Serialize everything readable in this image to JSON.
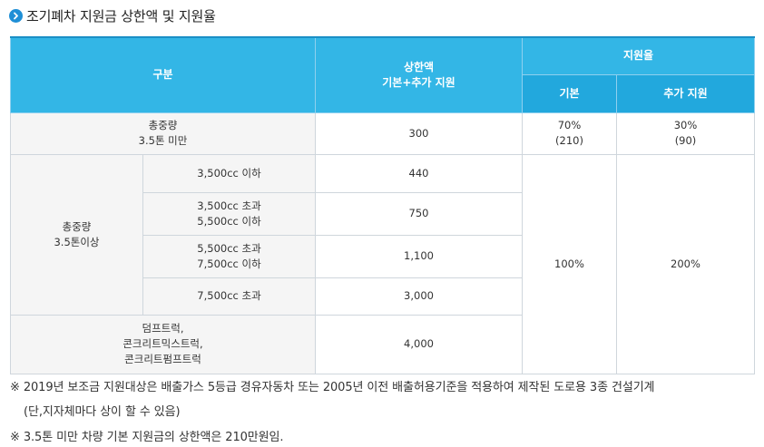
{
  "title": "조기폐차 지원금 상한액 및 지원율",
  "header": {
    "category": "구분",
    "cap_line1": "상한액",
    "cap_line2": "기본+추가 지원",
    "rate": "지원율",
    "basic": "기본",
    "extra": "추가 지원"
  },
  "rows": {
    "under35": {
      "label_line1": "총중량",
      "label_line2": "3.5톤 미만",
      "cap": "300",
      "basic_line1": "70%",
      "basic_line2": "(210)",
      "extra_line1": "30%",
      "extra_line2": "(90)"
    },
    "over35": {
      "label_line1": "총중량",
      "label_line2": "3.5톤이상",
      "basic": "100%",
      "extra": "200%",
      "sub": [
        {
          "l1": "3,500cc 이하",
          "l2": "",
          "cap": "440"
        },
        {
          "l1": "3,500cc 초과",
          "l2": "5,500cc 이하",
          "cap": "750"
        },
        {
          "l1": "5,500cc 초과",
          "l2": "7,500cc 이하",
          "cap": "1,100"
        },
        {
          "l1": "7,500cc 초과",
          "l2": "",
          "cap": "3,000"
        }
      ]
    },
    "machinery": {
      "line1": "덤프트럭,",
      "line2": "콘크리트믹스트럭,",
      "line3": "콘크리트펌프트럭",
      "cap": "4,000"
    }
  },
  "notes": [
    "※ 2019년 보조금 지원대상은 배출가스 5등급 경유자동차 또는 2005년 이전 배출허용기준을 적용하여 제작된 도로용 3종 건설기계",
    "(단,지자체마다 상이 할 수 있음)",
    "※ 3.5톤 미만 차량 기본 지원금의 상한액은 210만원임."
  ],
  "colors": {
    "header_primary": "#33b6e6",
    "header_secondary": "#22a8dd",
    "icon": "#1f8fd6"
  },
  "icons": {
    "title_bullet": "chevron-right-circle-icon"
  }
}
